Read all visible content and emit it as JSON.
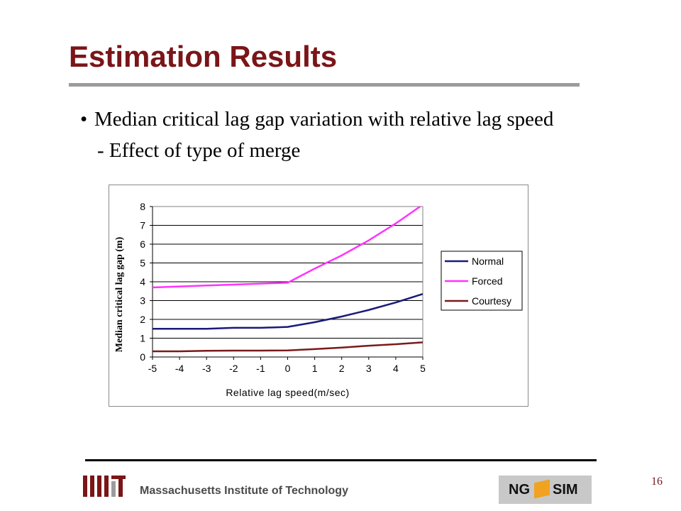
{
  "slide": {
    "title": "Estimation Results",
    "bullet": "Median critical lag gap variation with relative lag speed",
    "subbullet": "- Effect of type of merge",
    "footer": "Massachusetts Institute of Technology",
    "page_number": "16",
    "logo_ng": "NG",
    "logo_sim": "SIM",
    "colors": {
      "title": "#7a1518",
      "rule": "#9c9c9c"
    }
  },
  "chart_data": {
    "type": "line",
    "title": "",
    "xlabel": "Relative lag speed(m/sec)",
    "ylabel": "Median critical lag gap (m)",
    "x": [
      -5,
      -4,
      -3,
      -2,
      -1,
      0,
      1,
      2,
      3,
      4,
      5
    ],
    "xlim": [
      -5,
      5
    ],
    "ylim": [
      0,
      8
    ],
    "xticks": [
      -5,
      -4,
      -3,
      -2,
      -1,
      0,
      1,
      2,
      3,
      4,
      5
    ],
    "yticks": [
      0,
      1,
      2,
      3,
      4,
      5,
      6,
      7,
      8
    ],
    "grid": "horizontal",
    "legend_position": "right",
    "series": [
      {
        "name": "Normal",
        "color": "#1a1a7a",
        "values": [
          1.5,
          1.5,
          1.5,
          1.55,
          1.55,
          1.6,
          1.85,
          2.15,
          2.5,
          2.9,
          3.35
        ]
      },
      {
        "name": "Forced",
        "color": "#ff33ff",
        "values": [
          3.7,
          3.75,
          3.8,
          3.85,
          3.9,
          3.95,
          4.7,
          5.4,
          6.2,
          7.1,
          8.1
        ]
      },
      {
        "name": "Courtesy",
        "color": "#7a1a1a",
        "values": [
          0.3,
          0.3,
          0.33,
          0.34,
          0.34,
          0.35,
          0.42,
          0.5,
          0.6,
          0.68,
          0.78
        ]
      }
    ]
  }
}
